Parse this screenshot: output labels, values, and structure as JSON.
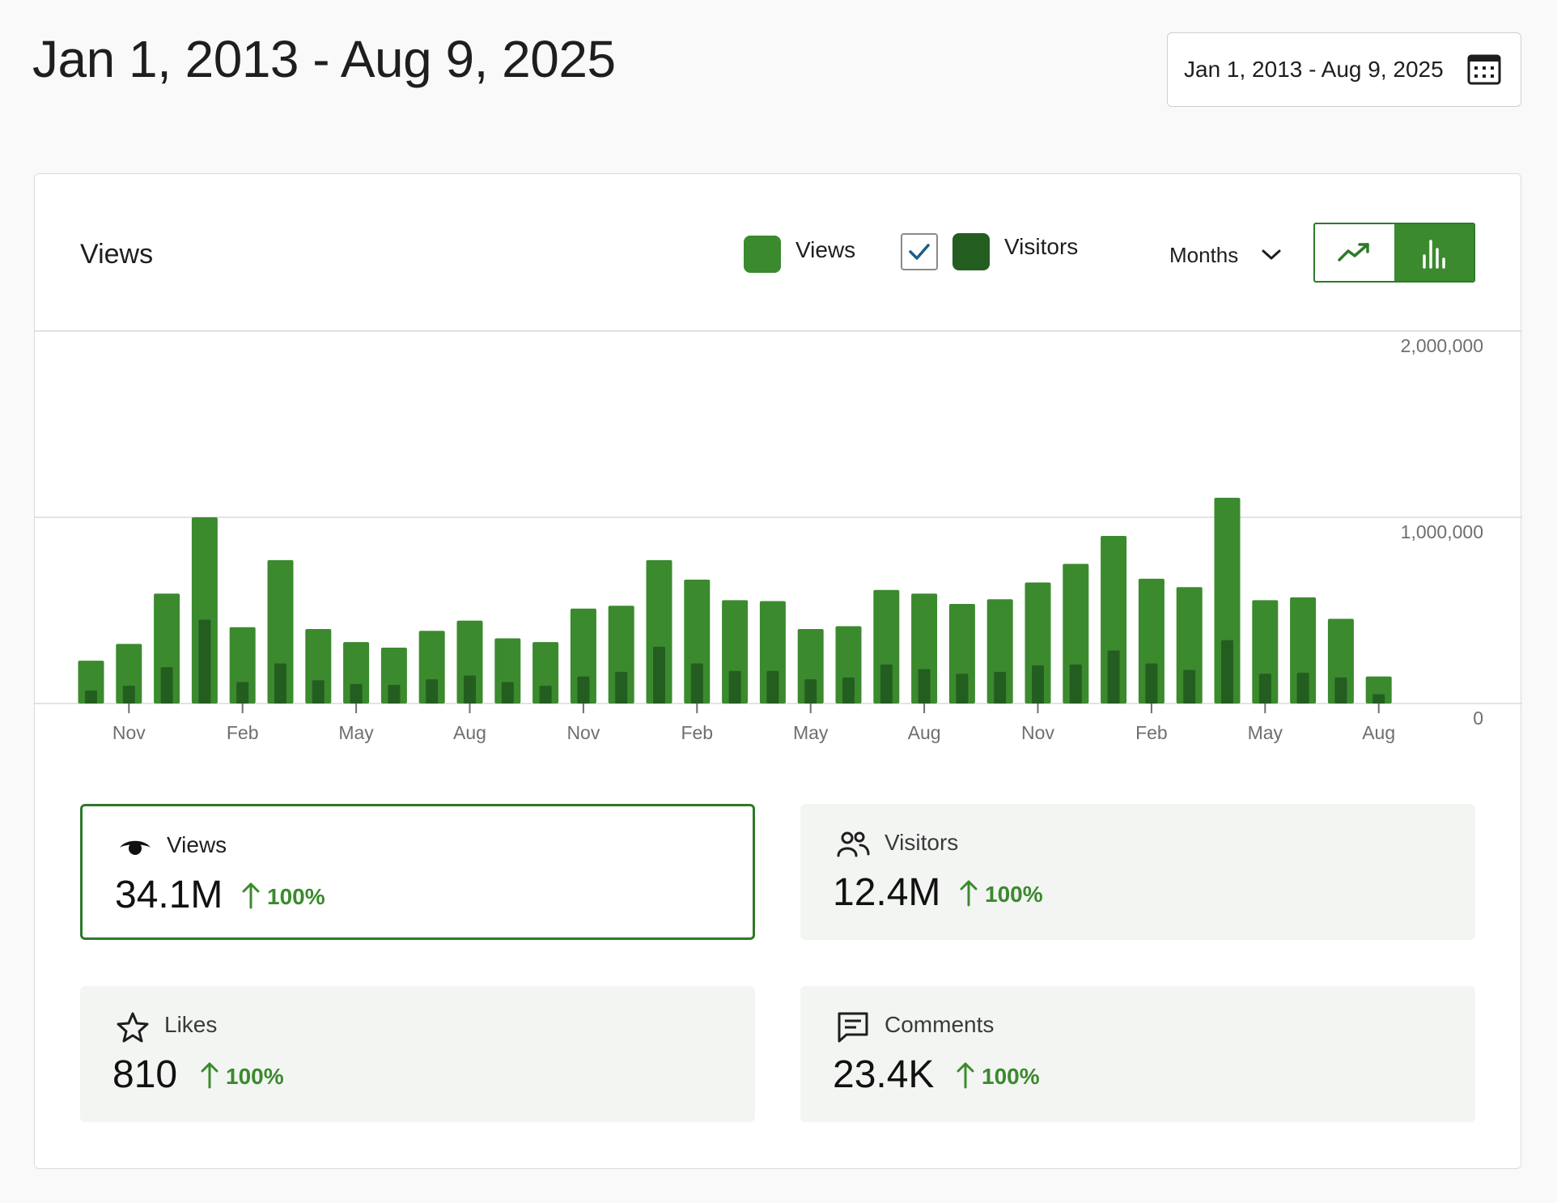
{
  "header": {
    "title": "Jan 1, 2013 - Aug 9, 2025",
    "date_range": "Jan 1, 2013 - Aug 9, 2025"
  },
  "card": {
    "title": "Views",
    "legend": [
      {
        "label": "Views",
        "color": "#3b8a2e"
      },
      {
        "label": "Visitors",
        "color": "#235e20"
      }
    ],
    "period": "Months",
    "chart_toggle": [
      "line-chart-icon",
      "bar-chart-icon"
    ],
    "chart_toggle_selected": "bar-chart-icon"
  },
  "chart_data": {
    "type": "bar",
    "x_tick_labels": [
      "Nov",
      "Feb",
      "May",
      "Aug",
      "Nov",
      "Feb",
      "May",
      "Aug",
      "Nov",
      "Feb",
      "May",
      "Aug"
    ],
    "y_tick_labels": [
      "2,000,000",
      "1,000,000",
      "0"
    ],
    "ylim": [
      0,
      2000000
    ],
    "grid": true,
    "legend_position": "top-right",
    "series": [
      {
        "name": "Views",
        "color": "#3b8a2e",
        "values": [
          230000,
          320000,
          590000,
          1000000,
          410000,
          770000,
          400000,
          330000,
          300000,
          390000,
          445000,
          350000,
          330000,
          510000,
          525000,
          770000,
          665000,
          555000,
          550000,
          400000,
          415000,
          610000,
          590000,
          535000,
          560000,
          650000,
          750000,
          900000,
          670000,
          625000,
          1105000,
          555000,
          570000,
          455000,
          145000
        ]
      },
      {
        "name": "Visitors",
        "color": "#235e20",
        "values": [
          70000,
          95000,
          195000,
          450000,
          115000,
          215000,
          125000,
          105000,
          100000,
          130000,
          150000,
          115000,
          95000,
          145000,
          170000,
          305000,
          215000,
          175000,
          175000,
          130000,
          140000,
          210000,
          185000,
          160000,
          170000,
          205000,
          210000,
          285000,
          215000,
          180000,
          340000,
          160000,
          165000,
          140000,
          50000
        ]
      }
    ]
  },
  "stats": [
    {
      "label": "Views",
      "value": "34.1M",
      "change": "100%",
      "icon": "eye-icon",
      "active": true
    },
    {
      "label": "Visitors",
      "value": "12.4M",
      "change": "100%",
      "icon": "people-icon",
      "active": false
    },
    {
      "label": "Likes",
      "value": "810",
      "change": "100%",
      "icon": "star-icon",
      "active": false
    },
    {
      "label": "Comments",
      "value": "23.4K",
      "change": "100%",
      "icon": "comment-icon",
      "active": false
    }
  ]
}
